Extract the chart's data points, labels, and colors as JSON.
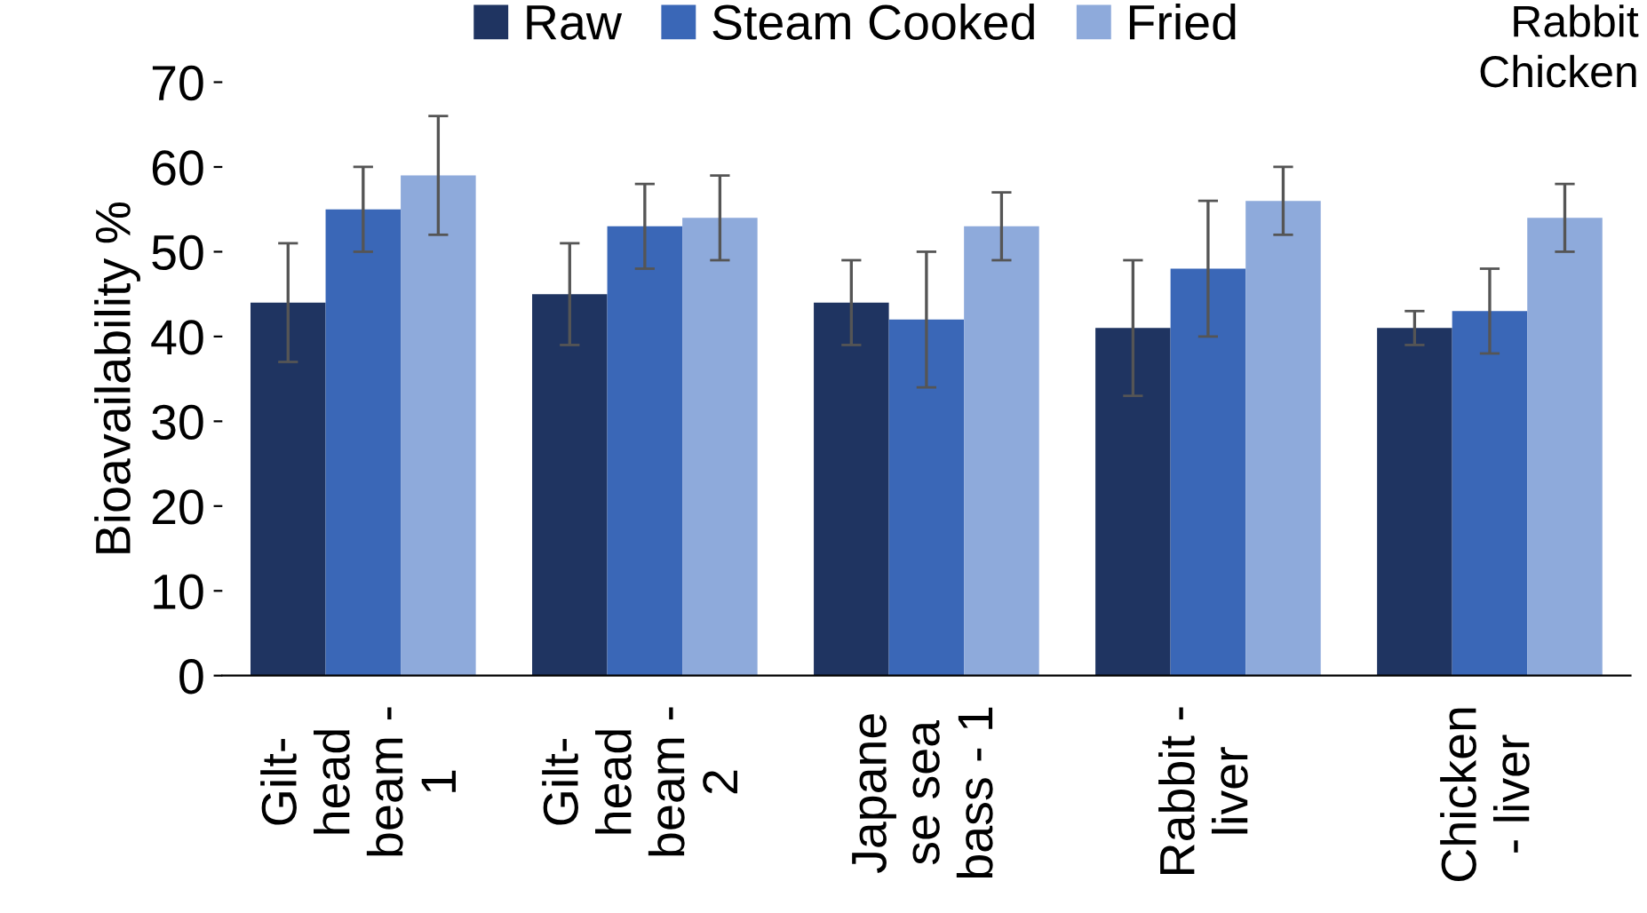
{
  "chart_data": {
    "type": "bar",
    "ylabel": "Bioavailability %",
    "categories": [
      "Gilt-\nhead\nbeam -\n1",
      "Gilt-\nhead\nbeam -\n2",
      "Japane\nse sea\nbass - 1",
      "Rabbit -\nliver",
      "Chicken\n- liver"
    ],
    "series": [
      {
        "name": "Raw",
        "color": "#1f3461",
        "values": [
          44,
          45,
          44,
          41,
          41
        ],
        "errors": [
          7,
          6,
          5,
          8,
          2
        ]
      },
      {
        "name": "Steam Cooked",
        "color": "#3a67b7",
        "values": [
          55,
          53,
          42,
          48,
          43
        ],
        "errors": [
          5,
          5,
          8,
          8,
          5
        ]
      },
      {
        "name": "Fried",
        "color": "#8eaadb",
        "values": [
          59,
          54,
          53,
          56,
          54
        ],
        "errors": [
          7,
          5,
          4,
          4,
          4
        ]
      }
    ],
    "ylim": [
      0,
      70
    ],
    "yticks": [
      0,
      10,
      20,
      30,
      40,
      50,
      60,
      70
    ],
    "grid": false,
    "legend": "top",
    "annotations": [
      "Rabbit",
      "Chicken"
    ]
  }
}
